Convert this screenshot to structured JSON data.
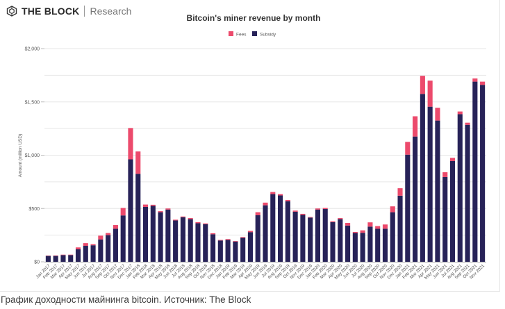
{
  "header": {
    "brand": "THE BLOCK",
    "section": "Research"
  },
  "caption": "График доходности майнинга bitcoin. Источник: The Block",
  "colors": {
    "fees": "#ec4a6c",
    "subsidy": "#272258",
    "grid": "#e6e6e6",
    "axis": "#aaaaaa"
  },
  "chart_data": {
    "type": "bar",
    "stacked": true,
    "title": "Bitcoin's miner revenue by month",
    "xlabel": "",
    "ylabel": "Amount (million USD)",
    "ylim": [
      0,
      2000
    ],
    "yticks": [
      0,
      500,
      1000,
      1500,
      2000
    ],
    "ytick_labels": [
      "$0",
      "$500",
      "$1,000",
      "$1,500",
      "$2,000"
    ],
    "minor_gridlines": [
      250,
      750,
      1250,
      1750
    ],
    "grid": true,
    "legend_position": "top-center",
    "categories": [
      "Jan 2017",
      "Feb 2017",
      "Mar 2017",
      "Apr 2017",
      "May 2017",
      "Jun 2017",
      "Jul 2017",
      "Aug 2017",
      "Sep 2017",
      "Oct 2017",
      "Nov 2017",
      "Dec 2017",
      "Jan 2018",
      "Feb 2018",
      "Mar 2018",
      "Apr 2018",
      "May 2018",
      "Jun 2018",
      "Jul 2018",
      "Aug 2018",
      "Sep 2018",
      "Oct 2018",
      "Nov 2018",
      "Dec 2018",
      "Jan 2019",
      "Feb 2019",
      "Mar 2019",
      "Apr 2019",
      "May 2019",
      "Jun 2019",
      "Jul 2019",
      "Aug 2019",
      "Sep 2019",
      "Oct 2019",
      "Nov 2019",
      "Dec 2019",
      "Jan 2020",
      "Feb 2020",
      "Mar 2020",
      "Apr 2020",
      "May 2020",
      "Jun 2020",
      "Jul 2020",
      "Aug 2020",
      "Sep 2020",
      "Oct 2020",
      "Nov 2020",
      "Dec 2020",
      "Jan 2021",
      "Feb 2021",
      "Mar 2021",
      "Apr 2021",
      "May 2021",
      "Jun 2021",
      "Jul 2021",
      "Aug 2021",
      "Sep 2021",
      "Oct 2021",
      "Nov 2021"
    ],
    "series": [
      {
        "name": "Subsidy",
        "values": [
          55,
          55,
          63,
          63,
          117,
          150,
          155,
          210,
          250,
          310,
          435,
          961,
          825,
          515,
          525,
          465,
          490,
          388,
          418,
          400,
          362,
          352,
          258,
          200,
          205,
          190,
          225,
          278,
          437,
          530,
          635,
          622,
          568,
          470,
          440,
          415,
          490,
          495,
          372,
          400,
          340,
          270,
          272,
          330,
          310,
          310,
          465,
          620,
          1005,
          1175,
          1575,
          1455,
          1325,
          795,
          945,
          1385,
          1285,
          1690,
          1660
        ]
      },
      {
        "name": "Fees",
        "values": [
          3,
          4,
          4,
          4,
          18,
          25,
          10,
          35,
          20,
          35,
          70,
          294,
          210,
          22,
          10,
          10,
          10,
          7,
          7,
          10,
          10,
          8,
          10,
          5,
          8,
          5,
          7,
          12,
          28,
          25,
          20,
          13,
          12,
          10,
          10,
          5,
          10,
          10,
          8,
          10,
          25,
          10,
          23,
          40,
          25,
          40,
          55,
          70,
          120,
          190,
          170,
          245,
          120,
          45,
          30,
          25,
          20,
          30,
          30
        ]
      }
    ],
    "legend": [
      "Fees",
      "Subsidy"
    ]
  }
}
